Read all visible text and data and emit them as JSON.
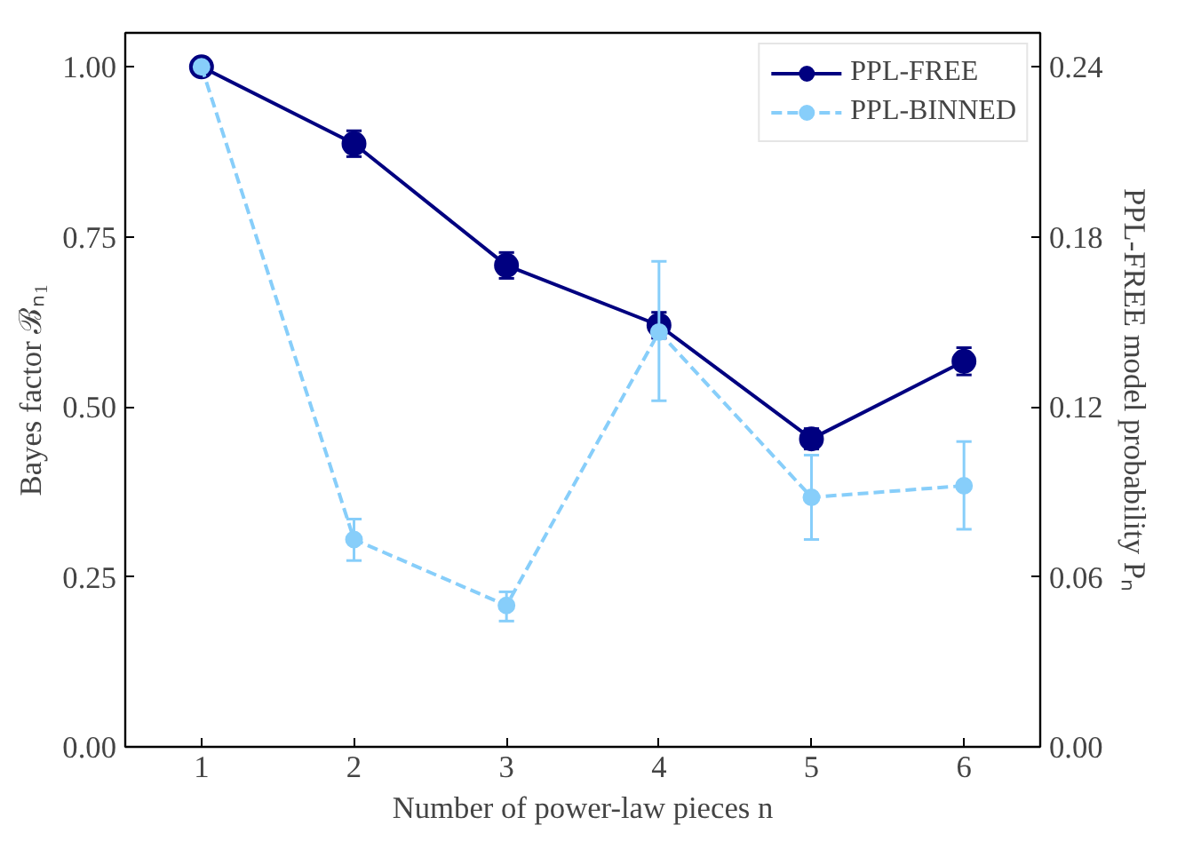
{
  "chart_data": {
    "type": "line",
    "xlabel": "Number of power-law pieces n",
    "ylabel": "Bayes factor ℬₙ₁",
    "y2label": "PPL-FREE model probability Pₙ",
    "x": [
      1,
      2,
      3,
      4,
      5,
      6
    ],
    "xlim": [
      0.5,
      6.5
    ],
    "xticks": [
      1,
      2,
      3,
      4,
      5,
      6
    ],
    "ylim": [
      0,
      1.05
    ],
    "yticks": [
      {
        "value": 0,
        "label": "0.00"
      },
      {
        "value": 0.25,
        "label": "0.25"
      },
      {
        "value": 0.5,
        "label": "0.50"
      },
      {
        "value": 0.75,
        "label": "0.75"
      },
      {
        "value": 1,
        "label": "1.00"
      }
    ],
    "y2lim": [
      0,
      0.252
    ],
    "y2ticks": [
      {
        "value": 0,
        "label": "0.00"
      },
      {
        "value": 0.06,
        "label": "0.06"
      },
      {
        "value": 0.12,
        "label": "0.12"
      },
      {
        "value": 0.18,
        "label": "0.18"
      },
      {
        "value": 0.24,
        "label": "0.24"
      }
    ],
    "marker": "circle",
    "grid": false,
    "legend": "top right",
    "series": [
      {
        "name": "PPL-FREE",
        "color": "#000080",
        "line_style": "solid",
        "values": [
          1.0,
          0.887,
          0.708,
          0.62,
          0.453,
          0.567
        ],
        "errors": [
          null,
          0.019,
          0.019,
          0.019,
          0.015,
          0.02
        ]
      },
      {
        "name": "PPL-BINNED",
        "color": "#87cefa",
        "line_style": "dashed",
        "values": [
          1.0,
          0.305,
          0.208,
          0.61,
          0.367,
          0.384
        ],
        "errors": [
          null,
          [
            0.274,
            0.335
          ],
          [
            0.185,
            0.228
          ],
          [
            0.509,
            0.714
          ],
          [
            0.305,
            0.429
          ],
          [
            0.32,
            0.449
          ]
        ]
      }
    ]
  }
}
